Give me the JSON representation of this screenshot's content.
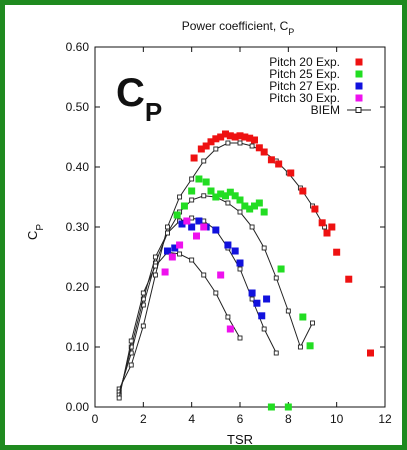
{
  "chart_data": {
    "type": "scatter",
    "title": "Power coefficient, C",
    "title_subscript": "P",
    "big_label": "C",
    "big_label_subscript": "P",
    "xlabel": "TSR",
    "ylabel": "C",
    "ylabel_subscript": "P",
    "xlim": [
      0,
      12
    ],
    "ylim": [
      0.0,
      0.6
    ],
    "xticks": [
      "0",
      "2",
      "4",
      "6",
      "8",
      "10",
      "12"
    ],
    "yticks": [
      "0.00",
      "0.10",
      "0.20",
      "0.30",
      "0.40",
      "0.50",
      "0.60"
    ],
    "grid": false,
    "legend_position": "top-right",
    "series": [
      {
        "name": "Pitch 20 Exp.",
        "color": "#ee1111",
        "kind": "markers",
        "points": [
          [
            4.1,
            0.415
          ],
          [
            4.4,
            0.43
          ],
          [
            4.6,
            0.435
          ],
          [
            4.8,
            0.442
          ],
          [
            5.0,
            0.447
          ],
          [
            5.2,
            0.45
          ],
          [
            5.4,
            0.455
          ],
          [
            5.6,
            0.452
          ],
          [
            5.8,
            0.45
          ],
          [
            6.0,
            0.452
          ],
          [
            6.2,
            0.45
          ],
          [
            6.4,
            0.448
          ],
          [
            6.6,
            0.445
          ],
          [
            6.8,
            0.432
          ],
          [
            7.0,
            0.425
          ],
          [
            7.3,
            0.412
          ],
          [
            7.6,
            0.405
          ],
          [
            8.1,
            0.39
          ],
          [
            8.6,
            0.36
          ],
          [
            9.1,
            0.33
          ],
          [
            9.4,
            0.307
          ],
          [
            9.6,
            0.29
          ],
          [
            9.8,
            0.3
          ],
          [
            10.0,
            0.258
          ],
          [
            10.5,
            0.213
          ],
          [
            11.4,
            0.09
          ]
        ]
      },
      {
        "name": "Pitch 25 Exp.",
        "color": "#22dd22",
        "kind": "markers",
        "points": [
          [
            3.4,
            0.32
          ],
          [
            3.7,
            0.335
          ],
          [
            4.0,
            0.36
          ],
          [
            4.3,
            0.38
          ],
          [
            4.6,
            0.375
          ],
          [
            4.8,
            0.36
          ],
          [
            5.0,
            0.35
          ],
          [
            5.2,
            0.355
          ],
          [
            5.4,
            0.352
          ],
          [
            5.6,
            0.358
          ],
          [
            5.8,
            0.352
          ],
          [
            6.0,
            0.345
          ],
          [
            6.2,
            0.335
          ],
          [
            6.4,
            0.33
          ],
          [
            6.6,
            0.335
          ],
          [
            6.8,
            0.34
          ],
          [
            7.0,
            0.325
          ],
          [
            7.7,
            0.23
          ],
          [
            8.6,
            0.15
          ],
          [
            8.9,
            0.102
          ],
          [
            7.3,
            0.0
          ],
          [
            8.0,
            0.0
          ]
        ]
      },
      {
        "name": "Pitch 27 Exp.",
        "color": "#1111dd",
        "kind": "markers",
        "points": [
          [
            3.0,
            0.26
          ],
          [
            3.3,
            0.265
          ],
          [
            3.6,
            0.305
          ],
          [
            4.0,
            0.3
          ],
          [
            4.3,
            0.31
          ],
          [
            4.6,
            0.3
          ],
          [
            5.0,
            0.295
          ],
          [
            5.5,
            0.27
          ],
          [
            5.8,
            0.26
          ],
          [
            6.0,
            0.24
          ],
          [
            6.5,
            0.19
          ],
          [
            6.7,
            0.173
          ],
          [
            6.9,
            0.152
          ],
          [
            7.1,
            0.18
          ]
        ]
      },
      {
        "name": "Pitch 30 Exp.",
        "color": "#ee11ee",
        "kind": "markers",
        "points": [
          [
            2.9,
            0.225
          ],
          [
            3.2,
            0.25
          ],
          [
            3.5,
            0.27
          ],
          [
            3.8,
            0.31
          ],
          [
            4.2,
            0.285
          ],
          [
            4.5,
            0.3
          ],
          [
            5.2,
            0.22
          ],
          [
            5.6,
            0.13
          ]
        ]
      },
      {
        "name": "BIEM",
        "color": "#222222",
        "kind": "line-open-squares",
        "curves": [
          [
            [
              1.0,
              0.03
            ],
            [
              1.5,
              0.07
            ],
            [
              2.0,
              0.135
            ],
            [
              2.5,
              0.22
            ],
            [
              3.0,
              0.3
            ],
            [
              3.5,
              0.35
            ],
            [
              4.0,
              0.38
            ],
            [
              4.5,
              0.41
            ],
            [
              5.0,
              0.43
            ],
            [
              5.5,
              0.44
            ],
            [
              6.0,
              0.44
            ],
            [
              6.5,
              0.435
            ],
            [
              7.0,
              0.425
            ],
            [
              7.5,
              0.41
            ],
            [
              8.0,
              0.39
            ],
            [
              8.5,
              0.365
            ],
            [
              9.0,
              0.335
            ],
            [
              9.5,
              0.3
            ]
          ],
          [
            [
              1.0,
              0.025
            ],
            [
              1.5,
              0.09
            ],
            [
              2.0,
              0.17
            ],
            [
              2.5,
              0.24
            ],
            [
              3.0,
              0.29
            ],
            [
              3.5,
              0.325
            ],
            [
              4.0,
              0.345
            ],
            [
              4.5,
              0.352
            ],
            [
              5.0,
              0.35
            ],
            [
              5.5,
              0.34
            ],
            [
              6.0,
              0.325
            ],
            [
              6.5,
              0.3
            ],
            [
              7.0,
              0.265
            ],
            [
              7.5,
              0.215
            ],
            [
              8.0,
              0.16
            ],
            [
              8.5,
              0.1
            ],
            [
              9.0,
              0.14
            ]
          ],
          [
            [
              1.0,
              0.02
            ],
            [
              1.5,
              0.1
            ],
            [
              2.0,
              0.18
            ],
            [
              2.5,
              0.25
            ],
            [
              3.0,
              0.29
            ],
            [
              3.5,
              0.31
            ],
            [
              4.0,
              0.315
            ],
            [
              4.5,
              0.31
            ],
            [
              5.0,
              0.295
            ],
            [
              5.5,
              0.265
            ],
            [
              6.0,
              0.23
            ],
            [
              6.5,
              0.18
            ],
            [
              7.0,
              0.13
            ],
            [
              7.5,
              0.09
            ]
          ],
          [
            [
              1.0,
              0.015
            ],
            [
              1.5,
              0.11
            ],
            [
              2.0,
              0.19
            ],
            [
              2.5,
              0.235
            ],
            [
              3.0,
              0.258
            ],
            [
              3.5,
              0.255
            ],
            [
              4.0,
              0.245
            ],
            [
              4.5,
              0.22
            ],
            [
              5.0,
              0.19
            ],
            [
              5.5,
              0.15
            ],
            [
              6.0,
              0.115
            ]
          ]
        ]
      }
    ]
  }
}
